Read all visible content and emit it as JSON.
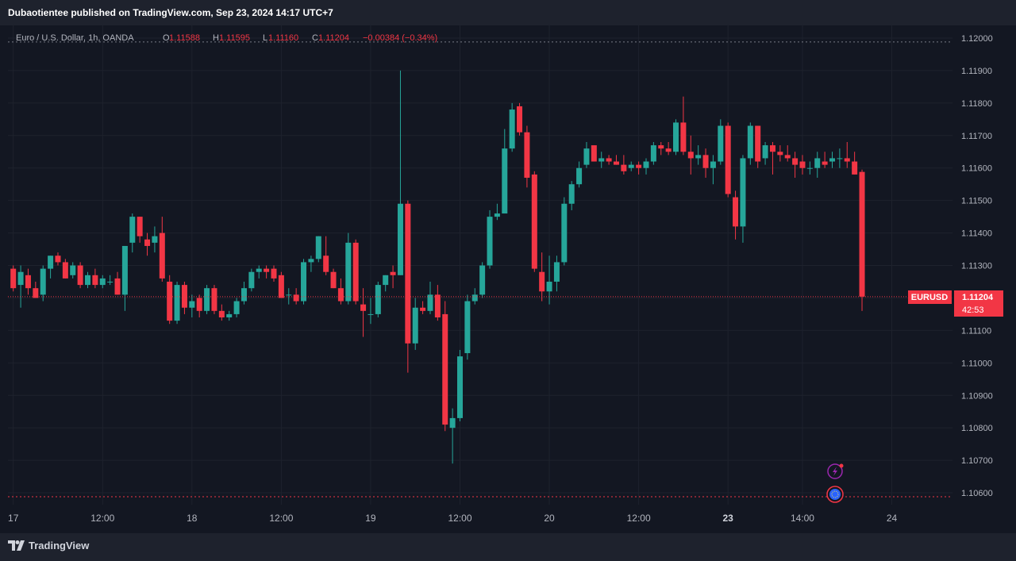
{
  "header": {
    "publisher": "Dubaotientee published on TradingView.com, Sep 23, 2024 14:17 UTC+7"
  },
  "legend": {
    "symbol": "Euro / U.S. Dollar, 1h, OANDA",
    "o_label": "O",
    "o_value": "1.11588",
    "h_label": "H",
    "h_value": "1.11595",
    "l_label": "L",
    "l_value": "1.11160",
    "c_label": "C",
    "c_value": "1.11204",
    "change": "−0.00384 (−0.34%)"
  },
  "price_tag": {
    "symbol": "EURUSD",
    "price": "1.11204",
    "countdown": "42:53"
  },
  "footer": {
    "brand": "TradingView"
  },
  "colors": {
    "up": "#26a69a",
    "down": "#f23645",
    "background": "#131722",
    "grid": "#1e222d",
    "text": "#b2b5be",
    "last_price": "#f23645"
  },
  "chart_data": {
    "type": "candlestick",
    "symbol": "EURUSD",
    "interval": "1h",
    "y_ticks": [
      "1.12000",
      "1.11900",
      "1.11800",
      "1.11700",
      "1.11600",
      "1.11500",
      "1.11400",
      "1.11300",
      "1.11200",
      "1.11100",
      "1.11000",
      "1.10900",
      "1.10800",
      "1.10700",
      "1.10600"
    ],
    "ylim": [
      1.1056,
      1.1204
    ],
    "x_ticks": [
      {
        "label": "17",
        "bar": 0,
        "bold": false
      },
      {
        "label": "12:00",
        "bar": 12,
        "bold": false
      },
      {
        "label": "18",
        "bar": 24,
        "bold": false
      },
      {
        "label": "12:00",
        "bar": 36,
        "bold": false
      },
      {
        "label": "19",
        "bar": 48,
        "bold": false
      },
      {
        "label": "12:00",
        "bar": 60,
        "bold": false
      },
      {
        "label": "20",
        "bar": 72,
        "bold": false
      },
      {
        "label": "12:00",
        "bar": 84,
        "bold": false
      },
      {
        "label": "23",
        "bar": 96,
        "bold": true
      },
      {
        "label": "14:00",
        "bar": 106,
        "bold": false
      },
      {
        "label": "24",
        "bar": 118,
        "bold": false
      }
    ],
    "last_price": 1.11204,
    "high_marker": 1.11988,
    "low_marker": 1.10588,
    "candles": [
      [
        1.1129,
        1.113,
        1.1122,
        1.1123
      ],
      [
        1.1124,
        1.113,
        1.1117,
        1.1128
      ],
      [
        1.1127,
        1.1129,
        1.1121,
        1.1123
      ],
      [
        1.1123,
        1.1125,
        1.112,
        1.112
      ],
      [
        1.1121,
        1.113,
        1.1119,
        1.1129
      ],
      [
        1.1129,
        1.1133,
        1.1126,
        1.1133
      ],
      [
        1.1133,
        1.1134,
        1.113,
        1.1131
      ],
      [
        1.1131,
        1.1132,
        1.1126,
        1.1126
      ],
      [
        1.1127,
        1.1131,
        1.1126,
        1.113
      ],
      [
        1.113,
        1.1131,
        1.1123,
        1.1124
      ],
      [
        1.1124,
        1.1128,
        1.1123,
        1.1127
      ],
      [
        1.1127,
        1.1129,
        1.1123,
        1.1124
      ],
      [
        1.1124,
        1.1127,
        1.1123,
        1.1126
      ],
      [
        1.1125,
        1.1127,
        1.1124,
        1.1125
      ],
      [
        1.1126,
        1.1128,
        1.1121,
        1.1121
      ],
      [
        1.1121,
        1.1136,
        1.1116,
        1.1136
      ],
      [
        1.1137,
        1.1146,
        1.1134,
        1.1145
      ],
      [
        1.1145,
        1.1145,
        1.1137,
        1.1139
      ],
      [
        1.1138,
        1.114,
        1.1133,
        1.1136
      ],
      [
        1.1137,
        1.1142,
        1.1134,
        1.1139
      ],
      [
        1.114,
        1.1145,
        1.1125,
        1.1126
      ],
      [
        1.1125,
        1.1127,
        1.1112,
        1.1113
      ],
      [
        1.1113,
        1.1125,
        1.1112,
        1.1124
      ],
      [
        1.1124,
        1.1125,
        1.1115,
        1.1117
      ],
      [
        1.1117,
        1.1121,
        1.1114,
        1.1119
      ],
      [
        1.112,
        1.1121,
        1.1114,
        1.1116
      ],
      [
        1.1116,
        1.1124,
        1.1115,
        1.1123
      ],
      [
        1.1123,
        1.1124,
        1.1115,
        1.1116
      ],
      [
        1.1116,
        1.1118,
        1.1113,
        1.1114
      ],
      [
        1.1114,
        1.1116,
        1.1113,
        1.1115
      ],
      [
        1.1115,
        1.112,
        1.1114,
        1.1119
      ],
      [
        1.1119,
        1.1125,
        1.1118,
        1.1123
      ],
      [
        1.1123,
        1.1129,
        1.1122,
        1.1128
      ],
      [
        1.1128,
        1.113,
        1.1126,
        1.1129
      ],
      [
        1.1129,
        1.113,
        1.1126,
        1.1128
      ],
      [
        1.1129,
        1.113,
        1.1125,
        1.1126
      ],
      [
        1.1127,
        1.1128,
        1.112,
        1.112
      ],
      [
        1.1121,
        1.1123,
        1.1118,
        1.1121
      ],
      [
        1.1121,
        1.1123,
        1.1118,
        1.1119
      ],
      [
        1.1119,
        1.1132,
        1.1118,
        1.1131
      ],
      [
        1.1131,
        1.1133,
        1.1128,
        1.1132
      ],
      [
        1.1132,
        1.1139,
        1.1131,
        1.1139
      ],
      [
        1.1133,
        1.1139,
        1.1127,
        1.1128
      ],
      [
        1.1128,
        1.1129,
        1.1123,
        1.1123
      ],
      [
        1.1123,
        1.1126,
        1.1118,
        1.1119
      ],
      [
        1.1119,
        1.114,
        1.1118,
        1.1137
      ],
      [
        1.1137,
        1.1138,
        1.1118,
        1.1119
      ],
      [
        1.1118,
        1.1123,
        1.1108,
        1.1116
      ],
      [
        1.1115,
        1.112,
        1.1112,
        1.1115
      ],
      [
        1.1115,
        1.1125,
        1.1114,
        1.1124
      ],
      [
        1.1124,
        1.1127,
        1.1122,
        1.1127
      ],
      [
        1.1128,
        1.113,
        1.1123,
        1.1127
      ],
      [
        1.1127,
        1.119,
        1.1127,
        1.1149
      ],
      [
        1.1149,
        1.115,
        1.1097,
        1.1106
      ],
      [
        1.1106,
        1.112,
        1.1104,
        1.1117
      ],
      [
        1.1117,
        1.1119,
        1.1115,
        1.1116
      ],
      [
        1.1116,
        1.1125,
        1.1115,
        1.1121
      ],
      [
        1.1121,
        1.1124,
        1.1113,
        1.1114
      ],
      [
        1.1115,
        1.1119,
        1.1079,
        1.1081
      ],
      [
        1.108,
        1.1086,
        1.1069,
        1.1083
      ],
      [
        1.1083,
        1.1104,
        1.1082,
        1.1102
      ],
      [
        1.1103,
        1.1121,
        1.1101,
        1.1119
      ],
      [
        1.1119,
        1.1123,
        1.1118,
        1.1121
      ],
      [
        1.1121,
        1.1131,
        1.112,
        1.113
      ],
      [
        1.113,
        1.1147,
        1.1129,
        1.1145
      ],
      [
        1.1145,
        1.1149,
        1.1144,
        1.1146
      ],
      [
        1.1146,
        1.1172,
        1.1146,
        1.1166
      ],
      [
        1.1166,
        1.118,
        1.1165,
        1.1178
      ],
      [
        1.1179,
        1.118,
        1.117,
        1.1171
      ],
      [
        1.1171,
        1.1173,
        1.1154,
        1.1157
      ],
      [
        1.1158,
        1.1159,
        1.1128,
        1.1129
      ],
      [
        1.1128,
        1.1134,
        1.1119,
        1.1122
      ],
      [
        1.1122,
        1.1133,
        1.1118,
        1.1125
      ],
      [
        1.1125,
        1.1133,
        1.1122,
        1.1131
      ],
      [
        1.1131,
        1.1151,
        1.113,
        1.1149
      ],
      [
        1.1149,
        1.1156,
        1.1147,
        1.1155
      ],
      [
        1.1155,
        1.1162,
        1.1154,
        1.116
      ],
      [
        1.1161,
        1.1168,
        1.116,
        1.1166
      ],
      [
        1.1167,
        1.1167,
        1.1162,
        1.1162
      ],
      [
        1.1162,
        1.1165,
        1.116,
        1.1163
      ],
      [
        1.1163,
        1.1164,
        1.1161,
        1.1162
      ],
      [
        1.1162,
        1.1164,
        1.1161,
        1.1161
      ],
      [
        1.1161,
        1.1164,
        1.1158,
        1.1159
      ],
      [
        1.116,
        1.1162,
        1.1159,
        1.1161
      ],
      [
        1.1161,
        1.1162,
        1.1158,
        1.116
      ],
      [
        1.116,
        1.1163,
        1.1158,
        1.1162
      ],
      [
        1.1162,
        1.1168,
        1.1161,
        1.1167
      ],
      [
        1.1167,
        1.1168,
        1.1164,
        1.1166
      ],
      [
        1.1166,
        1.1168,
        1.1164,
        1.1165
      ],
      [
        1.1165,
        1.1175,
        1.1164,
        1.1174
      ],
      [
        1.1174,
        1.1182,
        1.1164,
        1.1165
      ],
      [
        1.1165,
        1.117,
        1.1158,
        1.1163
      ],
      [
        1.1163,
        1.1167,
        1.1161,
        1.1164
      ],
      [
        1.1164,
        1.1166,
        1.1157,
        1.116
      ],
      [
        1.116,
        1.1164,
        1.1155,
        1.1162
      ],
      [
        1.1162,
        1.1175,
        1.1161,
        1.1173
      ],
      [
        1.1173,
        1.1174,
        1.1151,
        1.1152
      ],
      [
        1.1151,
        1.1153,
        1.1138,
        1.1142
      ],
      [
        1.1142,
        1.1164,
        1.1137,
        1.1163
      ],
      [
        1.1163,
        1.1174,
        1.1161,
        1.1173
      ],
      [
        1.1173,
        1.1173,
        1.116,
        1.1162
      ],
      [
        1.1163,
        1.1168,
        1.1161,
        1.1167
      ],
      [
        1.1167,
        1.1168,
        1.1158,
        1.1165
      ],
      [
        1.1165,
        1.1167,
        1.1162,
        1.1164
      ],
      [
        1.1164,
        1.1167,
        1.1162,
        1.1163
      ],
      [
        1.1163,
        1.1165,
        1.1157,
        1.1161
      ],
      [
        1.1162,
        1.1164,
        1.1158,
        1.116
      ],
      [
        1.116,
        1.1162,
        1.1158,
        1.116
      ],
      [
        1.116,
        1.1165,
        1.1157,
        1.1163
      ],
      [
        1.1162,
        1.1165,
        1.116,
        1.1161
      ],
      [
        1.1162,
        1.1165,
        1.116,
        1.1163
      ],
      [
        1.1163,
        1.1166,
        1.116,
        1.1163
      ],
      [
        1.1163,
        1.1168,
        1.116,
        1.1162
      ],
      [
        1.1162,
        1.1165,
        1.1158,
        1.1158
      ],
      [
        1.11588,
        1.11595,
        1.1116,
        1.11204
      ]
    ]
  }
}
